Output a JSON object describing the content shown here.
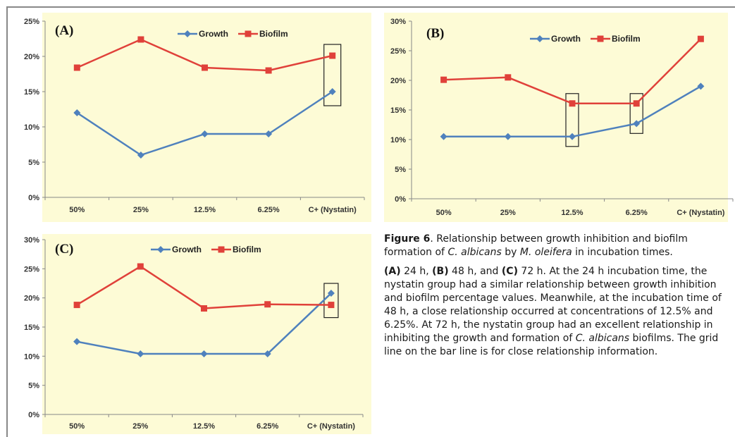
{
  "chart_data": [
    {
      "type": "line",
      "panel_label": "(A)",
      "categories": [
        "50%",
        "25%",
        "12.5%",
        "6.25%",
        "C+ (Nystatin)"
      ],
      "series": [
        {
          "name": "Growth",
          "color": "#4f81bd",
          "values": [
            12,
            6,
            9,
            9,
            15
          ]
        },
        {
          "name": "Biofilm",
          "color": "#e0413a",
          "values": [
            18.4,
            22.4,
            18.4,
            18,
            20.1
          ]
        }
      ],
      "y_ticks": [
        "0%",
        "5%",
        "10%",
        "15%",
        "20%",
        "25%"
      ],
      "ylim": [
        0,
        25
      ],
      "highlight_categories": [
        4
      ],
      "legend": "top-center",
      "grid": false
    },
    {
      "type": "line",
      "panel_label": "(B)",
      "categories": [
        "50%",
        "25%",
        "12.5%",
        "6.25%",
        "C+ (Nystatin)"
      ],
      "series": [
        {
          "name": "Growth",
          "color": "#4f81bd",
          "values": [
            10.5,
            10.5,
            10.5,
            12.7,
            19
          ]
        },
        {
          "name": "Biofilm",
          "color": "#e0413a",
          "values": [
            20.1,
            20.5,
            16.1,
            16.1,
            27
          ]
        }
      ],
      "y_ticks": [
        "0%",
        "5%",
        "10%",
        "15%",
        "20%",
        "25%",
        "30%"
      ],
      "ylim": [
        0,
        30
      ],
      "highlight_categories": [
        2,
        3
      ],
      "legend": "top-center",
      "grid": false
    },
    {
      "type": "line",
      "panel_label": "(C)",
      "categories": [
        "50%",
        "25%",
        "12.5%",
        "6.25%",
        "C+ (Nystatin)"
      ],
      "series": [
        {
          "name": "Growth",
          "color": "#4f81bd",
          "values": [
            12.5,
            10.4,
            10.4,
            10.4,
            20.8
          ]
        },
        {
          "name": "Biofilm",
          "color": "#e0413a",
          "values": [
            18.8,
            25.4,
            18.2,
            18.9,
            18.8
          ]
        }
      ],
      "y_ticks": [
        "0%",
        "5%",
        "10%",
        "15%",
        "20%",
        "25%",
        "30%"
      ],
      "ylim": [
        0,
        30
      ],
      "highlight_categories": [
        4
      ],
      "legend": "top-center",
      "grid": false
    }
  ],
  "caption": {
    "figure_label": "Figure 6",
    "title_part1": ". Relationship between growth inhibition and biofilm formation of ",
    "title_italic1": "C. albicans",
    "title_part2": " by ",
    "title_italic2": "M. oleifera",
    "title_part3": " in incubation times.",
    "panel_a": "(A)",
    "text1": " 24 h, ",
    "panel_b": "(B)",
    "text2": " 48 h, and ",
    "panel_c": "(C)",
    "text3": " 72 h. At the 24 h incubation time, the nystatin group had a similar relationship between growth inhibition and biofilm percentage values. Meanwhile, at the incubation time of 48 h, a close relationship occurred at concentrations of 12.5% and 6.25%. At 72 h, the nystatin group had an excellent relationship in inhibiting the growth and formation of ",
    "text_italic": "C. albicans",
    "text4": " biofilms. The grid line on the bar line is for close relationship information."
  }
}
